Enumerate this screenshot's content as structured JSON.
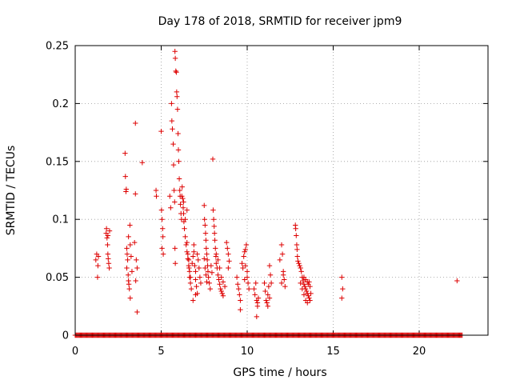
{
  "chart_data": {
    "type": "scatter",
    "title": "Day 178 of 2018, SRMTID for receiver jpm9",
    "xlabel": "GPS time / hours",
    "ylabel": "SRMTID / TECUs",
    "xlim": [
      0,
      24
    ],
    "ylim": [
      0,
      0.25
    ],
    "xticks": [
      0,
      5,
      10,
      15,
      20
    ],
    "yticks": [
      0,
      0.05,
      0.1,
      0.15,
      0.2,
      0.25
    ],
    "xtick_labels": [
      "0",
      "5",
      "10",
      "15",
      "20"
    ],
    "ytick_labels": [
      "0",
      "0.05",
      "0.1",
      "0.15",
      "0.2",
      "0.25"
    ],
    "grid": true,
    "marker": "+",
    "color": "#dd0000",
    "series": [
      {
        "name": "SRMTID",
        "baseline": {
          "y": 0,
          "x_start": 0.0,
          "x_end": 22.5,
          "step": 0.05
        },
        "points": [
          [
            1.2,
            0.065
          ],
          [
            1.25,
            0.07
          ],
          [
            1.3,
            0.05
          ],
          [
            1.32,
            0.06
          ],
          [
            1.35,
            0.068
          ],
          [
            1.8,
            0.088
          ],
          [
            1.82,
            0.092
          ],
          [
            1.85,
            0.084
          ],
          [
            1.88,
            0.078
          ],
          [
            1.9,
            0.07
          ],
          [
            1.92,
            0.066
          ],
          [
            1.95,
            0.062
          ],
          [
            1.98,
            0.058
          ],
          [
            2.0,
            0.09
          ],
          [
            1.9,
            0.086
          ],
          [
            2.9,
            0.157
          ],
          [
            2.92,
            0.137
          ],
          [
            2.95,
            0.124
          ],
          [
            2.97,
            0.126
          ],
          [
            3.0,
            0.075
          ],
          [
            3.02,
            0.07
          ],
          [
            3.05,
            0.065
          ],
          [
            3.0,
            0.058
          ],
          [
            3.08,
            0.052
          ],
          [
            3.1,
            0.047
          ],
          [
            3.12,
            0.044
          ],
          [
            3.15,
            0.04
          ],
          [
            3.2,
            0.032
          ],
          [
            3.1,
            0.085
          ],
          [
            3.18,
            0.095
          ],
          [
            3.2,
            0.078
          ],
          [
            3.25,
            0.068
          ],
          [
            3.3,
            0.055
          ],
          [
            3.5,
            0.183
          ],
          [
            3.5,
            0.122
          ],
          [
            3.55,
            0.065
          ],
          [
            3.6,
            0.058
          ],
          [
            3.52,
            0.047
          ],
          [
            3.6,
            0.02
          ],
          [
            3.45,
            0.08
          ],
          [
            3.9,
            0.149
          ],
          [
            4.7,
            0.125
          ],
          [
            4.72,
            0.12
          ],
          [
            5.0,
            0.176
          ],
          [
            5.02,
            0.108
          ],
          [
            5.05,
            0.1
          ],
          [
            5.08,
            0.092
          ],
          [
            5.1,
            0.085
          ],
          [
            5.05,
            0.075
          ],
          [
            5.12,
            0.07
          ],
          [
            5.5,
            0.12
          ],
          [
            5.55,
            0.11
          ],
          [
            5.6,
            0.2
          ],
          [
            5.62,
            0.185
          ],
          [
            5.65,
            0.178
          ],
          [
            5.7,
            0.165
          ],
          [
            5.72,
            0.147
          ],
          [
            5.75,
            0.125
          ],
          [
            5.78,
            0.115
          ],
          [
            5.8,
            0.075
          ],
          [
            5.82,
            0.062
          ],
          [
            5.8,
            0.245
          ],
          [
            5.82,
            0.239
          ],
          [
            5.85,
            0.228
          ],
          [
            5.88,
            0.227
          ],
          [
            5.9,
            0.21
          ],
          [
            5.92,
            0.206
          ],
          [
            5.95,
            0.195
          ],
          [
            5.98,
            0.174
          ],
          [
            6.0,
            0.16
          ],
          [
            6.02,
            0.15
          ],
          [
            6.05,
            0.135
          ],
          [
            6.08,
            0.125
          ],
          [
            6.1,
            0.12
          ],
          [
            6.12,
            0.113
          ],
          [
            6.15,
            0.105
          ],
          [
            6.18,
            0.1
          ],
          [
            6.2,
            0.12
          ],
          [
            6.22,
            0.128
          ],
          [
            6.25,
            0.118
          ],
          [
            6.28,
            0.11
          ],
          [
            6.3,
            0.105
          ],
          [
            6.32,
            0.098
          ],
          [
            6.35,
            0.092
          ],
          [
            6.4,
            0.085
          ],
          [
            6.45,
            0.078
          ],
          [
            6.5,
            0.072
          ],
          [
            6.55,
            0.066
          ],
          [
            6.6,
            0.06
          ],
          [
            6.65,
            0.055
          ],
          [
            6.7,
            0.05
          ],
          [
            6.3,
            0.115
          ],
          [
            6.4,
            0.1
          ],
          [
            6.5,
            0.108
          ],
          [
            6.5,
            0.08
          ],
          [
            6.55,
            0.07
          ],
          [
            6.6,
            0.065
          ],
          [
            6.62,
            0.058
          ],
          [
            6.65,
            0.05
          ],
          [
            6.7,
            0.045
          ],
          [
            6.75,
            0.04
          ],
          [
            6.8,
            0.062
          ],
          [
            6.85,
            0.068
          ],
          [
            6.9,
            0.072
          ],
          [
            6.95,
            0.06
          ],
          [
            7.0,
            0.055
          ],
          [
            7.0,
            0.048
          ],
          [
            7.05,
            0.042
          ],
          [
            7.1,
            0.036
          ],
          [
            7.1,
            0.07
          ],
          [
            7.15,
            0.065
          ],
          [
            7.2,
            0.058
          ],
          [
            7.25,
            0.05
          ],
          [
            7.3,
            0.045
          ],
          [
            6.9,
            0.078
          ],
          [
            7.0,
            0.035
          ],
          [
            6.85,
            0.03
          ],
          [
            7.5,
            0.112
          ],
          [
            7.52,
            0.1
          ],
          [
            7.55,
            0.095
          ],
          [
            7.58,
            0.088
          ],
          [
            7.6,
            0.082
          ],
          [
            7.62,
            0.075
          ],
          [
            7.65,
            0.07
          ],
          [
            7.68,
            0.065
          ],
          [
            7.7,
            0.06
          ],
          [
            7.72,
            0.055
          ],
          [
            7.75,
            0.05
          ],
          [
            7.8,
            0.045
          ],
          [
            7.85,
            0.04
          ],
          [
            7.5,
            0.066
          ],
          [
            7.55,
            0.058
          ],
          [
            7.6,
            0.052
          ],
          [
            7.65,
            0.046
          ],
          [
            7.9,
            0.06
          ],
          [
            7.95,
            0.054
          ],
          [
            8.0,
            0.152
          ],
          [
            8.02,
            0.108
          ],
          [
            8.05,
            0.1
          ],
          [
            8.08,
            0.094
          ],
          [
            8.1,
            0.088
          ],
          [
            8.12,
            0.082
          ],
          [
            8.15,
            0.075
          ],
          [
            8.18,
            0.068
          ],
          [
            8.2,
            0.062
          ],
          [
            8.25,
            0.058
          ],
          [
            8.3,
            0.052
          ],
          [
            8.35,
            0.048
          ],
          [
            8.4,
            0.044
          ],
          [
            8.45,
            0.04
          ],
          [
            8.5,
            0.038
          ],
          [
            8.55,
            0.036
          ],
          [
            8.6,
            0.034
          ],
          [
            8.3,
            0.065
          ],
          [
            8.4,
            0.058
          ],
          [
            8.5,
            0.05
          ],
          [
            8.6,
            0.046
          ],
          [
            8.7,
            0.042
          ],
          [
            8.2,
            0.07
          ],
          [
            8.8,
            0.08
          ],
          [
            8.85,
            0.075
          ],
          [
            8.9,
            0.07
          ],
          [
            8.95,
            0.064
          ],
          [
            8.9,
            0.058
          ],
          [
            9.4,
            0.05
          ],
          [
            9.45,
            0.044
          ],
          [
            9.5,
            0.04
          ],
          [
            9.55,
            0.035
          ],
          [
            9.6,
            0.03
          ],
          [
            9.6,
            0.022
          ],
          [
            9.7,
            0.062
          ],
          [
            9.75,
            0.058
          ],
          [
            9.8,
            0.068
          ],
          [
            9.85,
            0.072
          ],
          [
            9.9,
            0.074
          ],
          [
            9.95,
            0.078
          ],
          [
            9.9,
            0.06
          ],
          [
            10.0,
            0.055
          ],
          [
            10.0,
            0.05
          ],
          [
            10.05,
            0.045
          ],
          [
            10.1,
            0.04
          ],
          [
            9.85,
            0.048
          ],
          [
            10.4,
            0.04
          ],
          [
            10.45,
            0.035
          ],
          [
            10.5,
            0.045
          ],
          [
            10.55,
            0.03
          ],
          [
            10.6,
            0.025
          ],
          [
            10.55,
            0.016
          ],
          [
            10.6,
            0.028
          ],
          [
            10.65,
            0.032
          ],
          [
            11.0,
            0.045
          ],
          [
            11.05,
            0.038
          ],
          [
            11.1,
            0.03
          ],
          [
            11.15,
            0.028
          ],
          [
            11.2,
            0.035
          ],
          [
            11.25,
            0.042
          ],
          [
            11.3,
            0.06
          ],
          [
            11.35,
            0.052
          ],
          [
            11.4,
            0.045
          ],
          [
            11.2,
            0.025
          ],
          [
            11.3,
            0.032
          ],
          [
            11.9,
            0.065
          ],
          [
            12.0,
            0.078
          ],
          [
            12.05,
            0.07
          ],
          [
            12.1,
            0.055
          ],
          [
            12.15,
            0.048
          ],
          [
            12.2,
            0.042
          ],
          [
            12.1,
            0.052
          ],
          [
            12.0,
            0.045
          ],
          [
            12.8,
            0.095
          ],
          [
            12.82,
            0.092
          ],
          [
            12.85,
            0.086
          ],
          [
            12.88,
            0.078
          ],
          [
            12.9,
            0.074
          ],
          [
            12.92,
            0.068
          ],
          [
            12.95,
            0.064
          ],
          [
            13.0,
            0.062
          ],
          [
            13.05,
            0.06
          ],
          [
            13.1,
            0.058
          ],
          [
            13.15,
            0.055
          ],
          [
            13.2,
            0.05
          ],
          [
            13.25,
            0.047
          ],
          [
            13.3,
            0.044
          ],
          [
            13.35,
            0.042
          ],
          [
            13.4,
            0.04
          ],
          [
            13.45,
            0.038
          ],
          [
            13.5,
            0.036
          ],
          [
            13.55,
            0.034
          ],
          [
            13.6,
            0.032
          ],
          [
            13.65,
            0.03
          ],
          [
            13.2,
            0.04
          ],
          [
            13.3,
            0.035
          ],
          [
            13.4,
            0.03
          ],
          [
            13.5,
            0.028
          ],
          [
            13.55,
            0.044
          ],
          [
            13.6,
            0.046
          ],
          [
            13.65,
            0.042
          ],
          [
            13.7,
            0.036
          ],
          [
            13.3,
            0.05
          ],
          [
            13.4,
            0.048
          ],
          [
            13.5,
            0.046
          ],
          [
            13.1,
            0.045
          ],
          [
            15.5,
            0.05
          ],
          [
            15.55,
            0.04
          ],
          [
            15.5,
            0.032
          ],
          [
            22.2,
            0.047
          ]
        ]
      }
    ]
  }
}
